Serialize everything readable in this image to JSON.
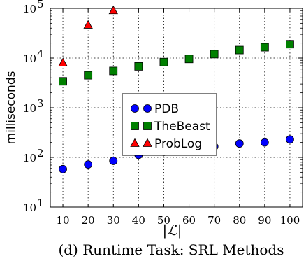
{
  "chart_data": {
    "type": "scatter",
    "caption": "(d) Runtime Task: SRL Methods",
    "xlabel": "|ℒ|",
    "ylabel": "milliseconds",
    "yscale": "log",
    "ylim": [
      10,
      100000
    ],
    "xlim": [
      5,
      105
    ],
    "x_ticks": [
      10,
      20,
      30,
      40,
      50,
      60,
      70,
      80,
      90,
      100
    ],
    "y_ticks": [
      {
        "value": 10,
        "base": "10",
        "exp": "1"
      },
      {
        "value": 100,
        "base": "10",
        "exp": "2"
      },
      {
        "value": 1000,
        "base": "10",
        "exp": "3"
      },
      {
        "value": 10000,
        "base": "10",
        "exp": "4"
      },
      {
        "value": 100000,
        "base": "10",
        "exp": "5"
      }
    ],
    "grid": true,
    "legend_position": "center",
    "series": [
      {
        "name": "PDB",
        "marker": "circle",
        "color": "#0000ff",
        "x": [
          10,
          20,
          30,
          40,
          50,
          60,
          70,
          80,
          90,
          100
        ],
        "y": [
          58,
          72,
          85,
          112,
          130,
          148,
          165,
          190,
          200,
          230
        ]
      },
      {
        "name": "TheBeast",
        "marker": "square",
        "color": "#008000",
        "x": [
          10,
          20,
          30,
          40,
          50,
          60,
          70,
          80,
          90,
          100
        ],
        "y": [
          3400,
          4500,
          5500,
          6800,
          8300,
          9600,
          12000,
          14500,
          16500,
          19000
        ]
      },
      {
        "name": "ProbLog",
        "marker": "triangle",
        "color": "#ff0000",
        "x": [
          10,
          20,
          30
        ],
        "y": [
          8000,
          46000,
          90000
        ]
      }
    ]
  }
}
